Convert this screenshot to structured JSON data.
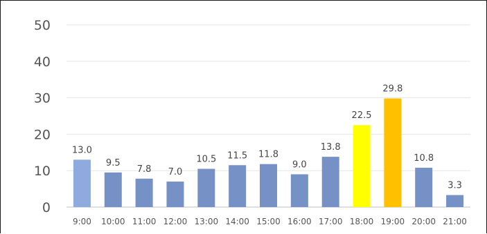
{
  "chart_data": {
    "type": "bar",
    "title": "",
    "xlabel": "",
    "ylabel": "",
    "ylim": [
      0,
      50
    ],
    "yticks": [
      "0",
      "10",
      "20",
      "30",
      "40",
      "50"
    ],
    "grid": true,
    "legend": "none",
    "categories": [
      "9:00",
      "10:00",
      "11:00",
      "12:00",
      "13:00",
      "14:00",
      "15:00",
      "16:00",
      "17:00",
      "18:00",
      "19:00",
      "20:00",
      "21:00"
    ],
    "values": [
      13.0,
      9.5,
      7.8,
      7.0,
      10.5,
      11.5,
      11.8,
      9.0,
      13.8,
      22.5,
      29.8,
      10.8,
      3.3
    ],
    "data_labels": [
      "13.0",
      "9.5",
      "7.8",
      "7.0",
      "10.5",
      "11.5",
      "11.8",
      "9.0",
      "13.8",
      "22.5",
      "29.8",
      "10.8",
      "3.3"
    ],
    "colors": [
      "#8faadc",
      "#7591c6",
      "#7591c6",
      "#7591c6",
      "#7591c6",
      "#7591c6",
      "#7591c6",
      "#7591c6",
      "#7591c6",
      "#ffff00",
      "#ffc000",
      "#7591c6",
      "#7591c6"
    ]
  }
}
